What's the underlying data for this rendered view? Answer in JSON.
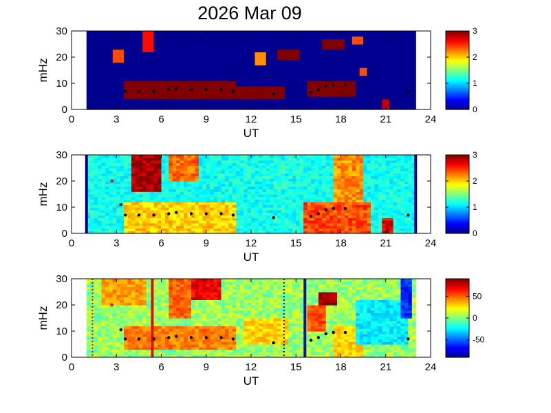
{
  "title": "2026 Mar 09",
  "colors": {
    "colormap": [
      "#00008f",
      "#0000ff",
      "#0080ff",
      "#00ffff",
      "#80ff80",
      "#ffff00",
      "#ff8000",
      "#ff0000",
      "#800000"
    ],
    "marker": "#000000",
    "red_marker": "#ff0000",
    "band_red": "#dd1100",
    "band_blue": "#1010aa"
  },
  "chart_data": [
    {
      "type": "heatmap",
      "xlabel": "UT",
      "ylabel": "mHz",
      "xlim": [
        0,
        24
      ],
      "ylim": [
        0,
        30
      ],
      "xticks": [
        "0",
        "3",
        "6",
        "9",
        "12",
        "15",
        "18",
        "21",
        "24"
      ],
      "yticks": [
        "0",
        "10",
        "20",
        "30"
      ],
      "data_range_ut": [
        1,
        23
      ],
      "colorbar": {
        "range": [
          0,
          3
        ],
        "ticks": [
          "0",
          "1",
          "2",
          "3"
        ]
      },
      "features": [
        {
          "ut": [
            3.5,
            11.0
          ],
          "mhz": [
            4,
            11
          ],
          "level": 3.0
        },
        {
          "ut": [
            11.0,
            14.3
          ],
          "mhz": [
            4,
            9
          ],
          "level": 3.0
        },
        {
          "ut": [
            15.8,
            19.0
          ],
          "mhz": [
            5,
            11
          ],
          "level": 3.0
        },
        {
          "ut": [
            4.7,
            5.5
          ],
          "mhz": [
            22,
            30
          ],
          "level": 2.6
        },
        {
          "ut": [
            2.8,
            3.5
          ],
          "mhz": [
            18,
            23
          ],
          "level": 2.4
        },
        {
          "ut": [
            12.3,
            13.0
          ],
          "mhz": [
            17,
            22
          ],
          "level": 2.2
        },
        {
          "ut": [
            13.8,
            15.2
          ],
          "mhz": [
            19,
            23
          ],
          "level": 3.0
        },
        {
          "ut": [
            16.8,
            18.3
          ],
          "mhz": [
            23,
            27
          ],
          "level": 3.0
        },
        {
          "ut": [
            18.8,
            19.4
          ],
          "mhz": [
            25,
            28
          ],
          "level": 2.4
        },
        {
          "ut": [
            19.3,
            19.8
          ],
          "mhz": [
            13,
            16
          ],
          "level": 2.4
        },
        {
          "ut": [
            20.8,
            21.3
          ],
          "mhz": [
            0,
            4
          ],
          "level": 2.8
        }
      ],
      "peaks": [
        {
          "ut": 3.6,
          "mhz": 7
        },
        {
          "ut": 4.5,
          "mhz": 7
        },
        {
          "ut": 5.5,
          "mhz": 7
        },
        {
          "ut": 6.5,
          "mhz": 7.5
        },
        {
          "ut": 7.0,
          "mhz": 8
        },
        {
          "ut": 8.0,
          "mhz": 7.5
        },
        {
          "ut": 9.0,
          "mhz": 7.5
        },
        {
          "ut": 10.0,
          "mhz": 7.5
        },
        {
          "ut": 10.8,
          "mhz": 7
        },
        {
          "ut": 13.5,
          "mhz": 6
        },
        {
          "ut": 16.0,
          "mhz": 6.5
        },
        {
          "ut": 16.5,
          "mhz": 7.5
        },
        {
          "ut": 17.0,
          "mhz": 9
        },
        {
          "ut": 17.5,
          "mhz": 9.5
        },
        {
          "ut": 18.3,
          "mhz": 9.5
        },
        {
          "ut": 22.5,
          "mhz": 7
        }
      ]
    },
    {
      "type": "heatmap",
      "xlabel": "UT",
      "ylabel": "mHz",
      "xlim": [
        0,
        24
      ],
      "ylim": [
        0,
        30
      ],
      "xticks": [
        "0",
        "3",
        "6",
        "9",
        "12",
        "15",
        "18",
        "21",
        "24"
      ],
      "yticks": [
        "0",
        "10",
        "20",
        "30"
      ],
      "data_range_ut": [
        1,
        23
      ],
      "colorbar": {
        "range": [
          0,
          3
        ],
        "ticks": [
          "0",
          "1",
          "2",
          "3"
        ]
      },
      "features": [
        {
          "ut": [
            4.0,
            6.0
          ],
          "mhz": [
            16,
            30
          ],
          "level": 2.9
        },
        {
          "ut": [
            6.5,
            8.5
          ],
          "mhz": [
            20,
            30
          ],
          "level": 2.3
        },
        {
          "ut": [
            3.5,
            11.0
          ],
          "mhz": [
            0,
            12
          ],
          "level": 2.0
        },
        {
          "ut": [
            15.5,
            20.0
          ],
          "mhz": [
            0,
            12
          ],
          "level": 2.4
        },
        {
          "ut": [
            17.5,
            19.5
          ],
          "mhz": [
            12,
            30
          ],
          "level": 2.2
        },
        {
          "ut": [
            20.8,
            21.5
          ],
          "mhz": [
            0,
            6
          ],
          "level": 2.7
        },
        {
          "ut": [
            11.5,
            15.5
          ],
          "mhz": [
            18,
            30
          ],
          "level": 1.2
        }
      ],
      "peaks": [
        {
          "ut": 3.3,
          "mhz": 11
        },
        {
          "ut": 3.6,
          "mhz": 7
        },
        {
          "ut": 4.5,
          "mhz": 7
        },
        {
          "ut": 5.5,
          "mhz": 7
        },
        {
          "ut": 6.5,
          "mhz": 7.5
        },
        {
          "ut": 7.0,
          "mhz": 8
        },
        {
          "ut": 8.0,
          "mhz": 7.5
        },
        {
          "ut": 9.0,
          "mhz": 7.5
        },
        {
          "ut": 10.0,
          "mhz": 7.5
        },
        {
          "ut": 10.8,
          "mhz": 7
        },
        {
          "ut": 13.5,
          "mhz": 6
        },
        {
          "ut": 16.0,
          "mhz": 6.5
        },
        {
          "ut": 16.5,
          "mhz": 7.5
        },
        {
          "ut": 17.0,
          "mhz": 9
        },
        {
          "ut": 17.5,
          "mhz": 9.5
        },
        {
          "ut": 18.3,
          "mhz": 9.5
        },
        {
          "ut": 22.5,
          "mhz": 7
        }
      ],
      "red_points": [
        {
          "ut": 2.7,
          "mhz": 20
        }
      ]
    },
    {
      "type": "heatmap",
      "xlabel": "UT",
      "ylabel": "mHz",
      "xlim": [
        0,
        24
      ],
      "ylim": [
        0,
        30
      ],
      "xticks": [
        "0",
        "3",
        "6",
        "9",
        "12",
        "15",
        "18",
        "21",
        "24"
      ],
      "yticks": [
        "0",
        "10",
        "20",
        "30"
      ],
      "data_range_ut": [
        1,
        23
      ],
      "colorbar": {
        "range": [
          -90,
          90
        ],
        "ticks": [
          "50",
          "0",
          "-50"
        ],
        "tick_values": [
          50,
          0,
          -50
        ]
      },
      "features": [
        {
          "ut": [
            3.5,
            11.0
          ],
          "mhz": [
            3,
            12
          ],
          "level": 45
        },
        {
          "ut": [
            6.5,
            8.0
          ],
          "mhz": [
            15,
            30
          ],
          "level": 50
        },
        {
          "ut": [
            8.0,
            10.0
          ],
          "mhz": [
            22,
            30
          ],
          "level": 70
        },
        {
          "ut": [
            2.0,
            5.0
          ],
          "mhz": [
            20,
            30
          ],
          "level": 40
        },
        {
          "ut": [
            16.5,
            17.8
          ],
          "mhz": [
            20,
            25
          ],
          "level": 85
        },
        {
          "ut": [
            15.7,
            17.0
          ],
          "mhz": [
            10,
            20
          ],
          "level": 55
        },
        {
          "ut": [
            17.5,
            19.5
          ],
          "mhz": [
            0,
            12
          ],
          "level": 30
        },
        {
          "ut": [
            19.0,
            22.5
          ],
          "mhz": [
            5,
            22
          ],
          "level": -25
        },
        {
          "ut": [
            22.0,
            22.8
          ],
          "mhz": [
            15,
            30
          ],
          "level": -60
        },
        {
          "ut": [
            11.5,
            14.5
          ],
          "mhz": [
            5,
            15
          ],
          "level": 30
        }
      ],
      "vertical_lines": [
        {
          "ut": 1.4,
          "color": "red",
          "style": "dotted"
        },
        {
          "ut": 5.4,
          "color": "red",
          "style": "solid"
        },
        {
          "ut": 14.2,
          "color": "blue",
          "style": "dotted"
        },
        {
          "ut": 15.6,
          "color": "blue",
          "style": "solid"
        }
      ],
      "peaks": [
        {
          "ut": 3.3,
          "mhz": 10.5
        },
        {
          "ut": 3.6,
          "mhz": 7
        },
        {
          "ut": 4.5,
          "mhz": 7
        },
        {
          "ut": 5.5,
          "mhz": 7
        },
        {
          "ut": 6.5,
          "mhz": 7.5
        },
        {
          "ut": 7.0,
          "mhz": 8
        },
        {
          "ut": 8.0,
          "mhz": 7.5
        },
        {
          "ut": 9.0,
          "mhz": 7.5
        },
        {
          "ut": 10.0,
          "mhz": 7.5
        },
        {
          "ut": 10.8,
          "mhz": 7
        },
        {
          "ut": 13.5,
          "mhz": 5.5
        },
        {
          "ut": 16.0,
          "mhz": 6.5
        },
        {
          "ut": 16.5,
          "mhz": 7.5
        },
        {
          "ut": 17.0,
          "mhz": 9
        },
        {
          "ut": 17.5,
          "mhz": 9.5
        },
        {
          "ut": 18.3,
          "mhz": 9.5
        },
        {
          "ut": 22.5,
          "mhz": 7
        }
      ],
      "red_points": [
        {
          "ut": 2.7,
          "mhz": 20
        }
      ]
    }
  ]
}
